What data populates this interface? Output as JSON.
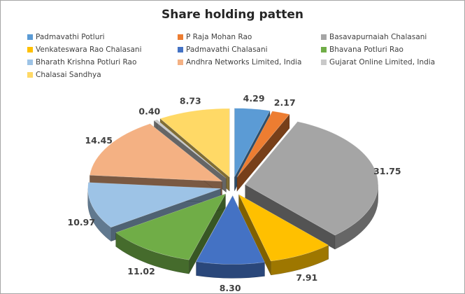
{
  "chart_data": {
    "type": "pie",
    "title": "Share holding patten",
    "legend_position": "top",
    "categories": [
      "Padmavathi Potluri",
      "P Raja Mohan Rao",
      "Basavapurnaiah Chalasani",
      "Venkateswara Rao Chalasani",
      "Padmavathi Chalasani",
      "Bhavana Potluri Rao",
      "Bharath Krishna Potluri Rao",
      "Andhra Networks Limited, India",
      "Gujarat Online Limited, India",
      "Chalasai Sandhya"
    ],
    "values": [
      4.29,
      2.17,
      31.75,
      7.91,
      8.3,
      11.02,
      10.97,
      14.45,
      0.4,
      8.73
    ],
    "data_labels": [
      "4.29",
      "2.17",
      "31.75",
      "7.91",
      "8.30",
      "11.02",
      "10.97",
      "14.45",
      "0.40",
      "8.73"
    ],
    "colors": [
      "#5B9BD5",
      "#ED7D31",
      "#A5A5A5",
      "#FFC000",
      "#4472C4",
      "#70AD47",
      "#9DC3E6",
      "#F4B183",
      "#C9C9C9",
      "#FFD966"
    ]
  }
}
